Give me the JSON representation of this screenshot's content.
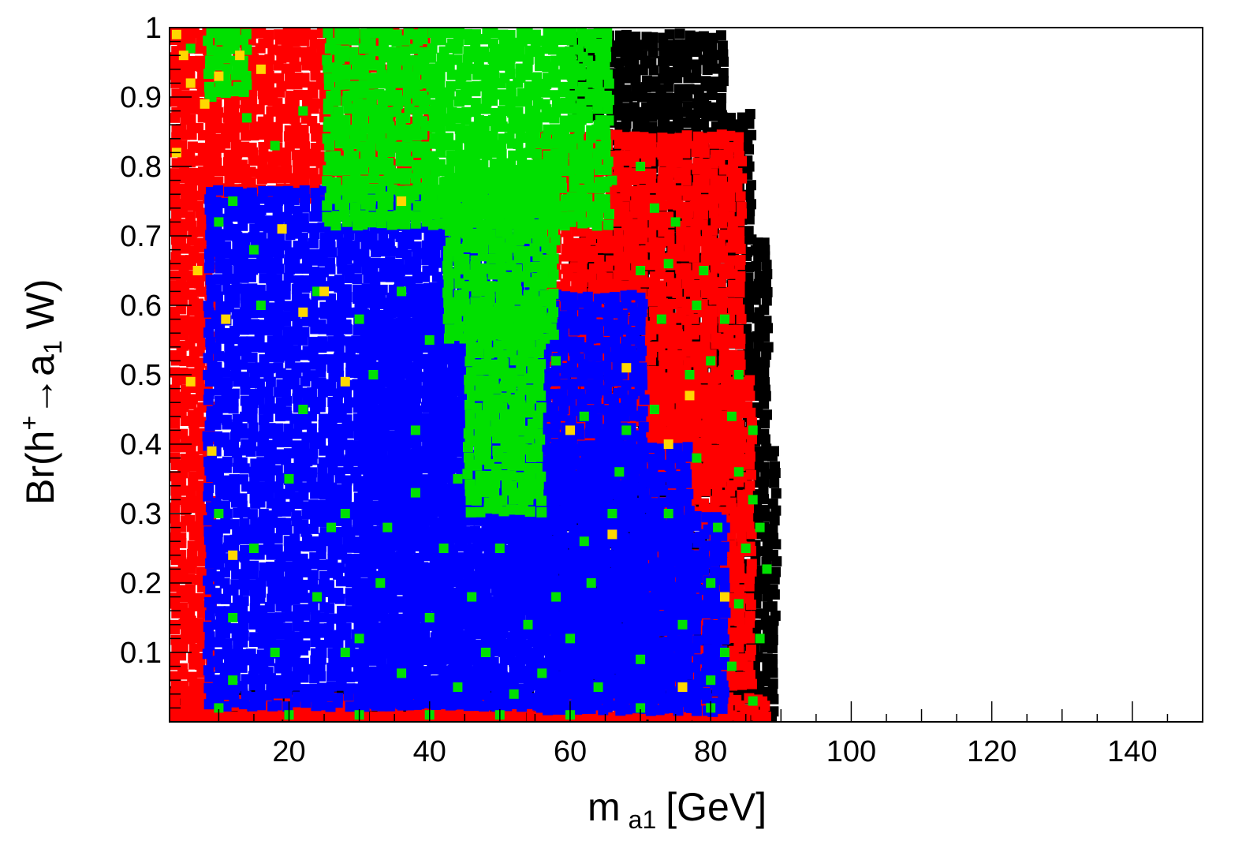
{
  "chart_data": {
    "type": "scatter",
    "title": "",
    "xlabel": {
      "main": "m",
      "sub": "a1",
      "unit": "[GeV]"
    },
    "ylabel": {
      "pre": "Br(h",
      "sup": "+",
      "arrow": "→",
      "a": "a",
      "sub": "1",
      "post": " W)"
    },
    "xlim": [
      3,
      150
    ],
    "ylim": [
      0,
      1
    ],
    "x_major_ticks": [
      20,
      40,
      60,
      80,
      100,
      120,
      140
    ],
    "x_tick_labels": [
      "20",
      "40",
      "60",
      "80",
      "100",
      "120",
      "140"
    ],
    "y_major_ticks": [
      0.1,
      0.2,
      0.3,
      0.4,
      0.5,
      0.6,
      0.7,
      0.8,
      0.9,
      1
    ],
    "y_tick_labels": [
      "0.1",
      "0.2",
      "0.3",
      "0.4",
      "0.5",
      "0.6",
      "0.7",
      "0.8",
      "0.9",
      "1"
    ],
    "grid": false,
    "legend": "none",
    "marker": "square",
    "series": [
      {
        "color": "#000000",
        "regions": [
          {
            "x": [
              3,
              89
            ],
            "y": [
              0.0,
              0.05
            ]
          },
          {
            "x": [
              55,
              89
            ],
            "y": [
              0.05,
              0.4
            ]
          },
          {
            "x": [
              60,
              88
            ],
            "y": [
              0.4,
              0.7
            ]
          },
          {
            "x": [
              65,
              85
            ],
            "y": [
              0.7,
              0.88
            ]
          },
          {
            "x": [
              60,
              82
            ],
            "y": [
              0.88,
              0.995
            ]
          }
        ]
      },
      {
        "color": "#ff0000",
        "regions": [
          {
            "x": [
              3,
              8
            ],
            "y": [
              0.0,
              1.0
            ]
          },
          {
            "x": [
              3,
              88
            ],
            "y": [
              0.0,
              0.04
            ]
          },
          {
            "x": [
              8,
              40
            ],
            "y": [
              0.76,
              1.0
            ]
          },
          {
            "x": [
              55,
              84
            ],
            "y": [
              0.35,
              0.85
            ]
          },
          {
            "x": [
              70,
              86
            ],
            "y": [
              0.05,
              0.5
            ]
          }
        ]
      },
      {
        "color": "#0000ff",
        "regions": [
          {
            "x": [
              8,
              55
            ],
            "y": [
              0.02,
              0.77
            ]
          },
          {
            "x": [
              30,
              70
            ],
            "y": [
              0.02,
              0.62
            ]
          },
          {
            "x": [
              55,
              76
            ],
            "y": [
              0.02,
              0.4
            ]
          },
          {
            "x": [
              70,
              82
            ],
            "y": [
              0.02,
              0.3
            ]
          }
        ]
      },
      {
        "color": "#00e000",
        "regions": [
          {
            "x": [
              25,
              65
            ],
            "y": [
              0.72,
              1.0
            ]
          },
          {
            "x": [
              42,
              58
            ],
            "y": [
              0.55,
              0.8
            ]
          },
          {
            "x": [
              45,
              55
            ],
            "y": [
              0.3,
              0.6
            ]
          },
          {
            "x": [
              8,
              14
            ],
            "y": [
              0.9,
              1.0
            ]
          }
        ],
        "scatter": [
          [
            6,
            0.97
          ],
          [
            9,
            0.9
          ],
          [
            14,
            0.87
          ],
          [
            22,
            0.88
          ],
          [
            18,
            0.83
          ],
          [
            60,
            0.9
          ],
          [
            64,
            0.86
          ],
          [
            70,
            0.8
          ],
          [
            75,
            0.72
          ],
          [
            79,
            0.65
          ],
          [
            82,
            0.58
          ],
          [
            84,
            0.5
          ],
          [
            86,
            0.42
          ],
          [
            86,
            0.32
          ],
          [
            85,
            0.25
          ],
          [
            84,
            0.17
          ],
          [
            82,
            0.1
          ],
          [
            80,
            0.06
          ],
          [
            77,
            0.5
          ],
          [
            73,
            0.58
          ],
          [
            70,
            0.65
          ],
          [
            68,
            0.42
          ],
          [
            66,
            0.3
          ],
          [
            63,
            0.2
          ],
          [
            60,
            0.12
          ],
          [
            56,
            0.07
          ],
          [
            48,
            0.1
          ],
          [
            40,
            0.15
          ],
          [
            33,
            0.2
          ],
          [
            26,
            0.28
          ],
          [
            20,
            0.35
          ],
          [
            15,
            0.25
          ],
          [
            12,
            0.15
          ],
          [
            10,
            0.3
          ],
          [
            22,
            0.45
          ],
          [
            32,
            0.5
          ],
          [
            38,
            0.42
          ],
          [
            44,
            0.35
          ],
          [
            50,
            0.25
          ],
          [
            58,
            0.18
          ],
          [
            62,
            0.26
          ],
          [
            67,
            0.36
          ],
          [
            72,
            0.45
          ],
          [
            78,
            0.38
          ],
          [
            81,
            0.28
          ],
          [
            76,
            0.14
          ],
          [
            70,
            0.09
          ],
          [
            64,
            0.05
          ],
          [
            52,
            0.04
          ],
          [
            44,
            0.05
          ],
          [
            36,
            0.07
          ],
          [
            28,
            0.1
          ],
          [
            18,
            0.1
          ],
          [
            12,
            0.06
          ],
          [
            16,
            0.6
          ],
          [
            24,
            0.62
          ],
          [
            30,
            0.58
          ],
          [
            36,
            0.62
          ],
          [
            40,
            0.55
          ],
          [
            58,
            0.52
          ],
          [
            62,
            0.44
          ],
          [
            74,
            0.3
          ],
          [
            80,
            0.2
          ],
          [
            83,
            0.08
          ],
          [
            87,
            0.12
          ],
          [
            88,
            0.22
          ],
          [
            87,
            0.28
          ],
          [
            84,
            0.36
          ],
          [
            83,
            0.44
          ],
          [
            80,
            0.52
          ],
          [
            78,
            0.6
          ],
          [
            74,
            0.66
          ],
          [
            72,
            0.74
          ],
          [
            66,
            0.78
          ],
          [
            62,
            0.82
          ],
          [
            12,
            0.75
          ],
          [
            10,
            0.72
          ],
          [
            15,
            0.68
          ],
          [
            28,
            0.3
          ],
          [
            34,
            0.28
          ],
          [
            46,
            0.18
          ],
          [
            54,
            0.14
          ],
          [
            42,
            0.25
          ],
          [
            38,
            0.33
          ],
          [
            24,
            0.18
          ],
          [
            30,
            0.12
          ],
          [
            10,
            0.02
          ],
          [
            20,
            0.01
          ],
          [
            30,
            0.01
          ],
          [
            40,
            0.01
          ],
          [
            50,
            0.01
          ],
          [
            60,
            0.01
          ],
          [
            70,
            0.02
          ],
          [
            80,
            0.02
          ],
          [
            86,
            0.03
          ]
        ]
      },
      {
        "color": "#ffd700",
        "scatter": [
          [
            4,
            0.99
          ],
          [
            5,
            0.96
          ],
          [
            6,
            0.92
          ],
          [
            8,
            0.89
          ],
          [
            10,
            0.93
          ],
          [
            13,
            0.96
          ],
          [
            16,
            0.94
          ],
          [
            4,
            0.82
          ],
          [
            7,
            0.65
          ],
          [
            6,
            0.49
          ],
          [
            9,
            0.39
          ],
          [
            11,
            0.58
          ],
          [
            19,
            0.71
          ],
          [
            22,
            0.59
          ],
          [
            25,
            0.62
          ],
          [
            28,
            0.49
          ],
          [
            60,
            0.42
          ],
          [
            74,
            0.4
          ],
          [
            77,
            0.47
          ],
          [
            82,
            0.18
          ],
          [
            76,
            0.05
          ],
          [
            68,
            0.51
          ],
          [
            36,
            0.75
          ],
          [
            12,
            0.24
          ],
          [
            66,
            0.27
          ]
        ]
      }
    ]
  }
}
